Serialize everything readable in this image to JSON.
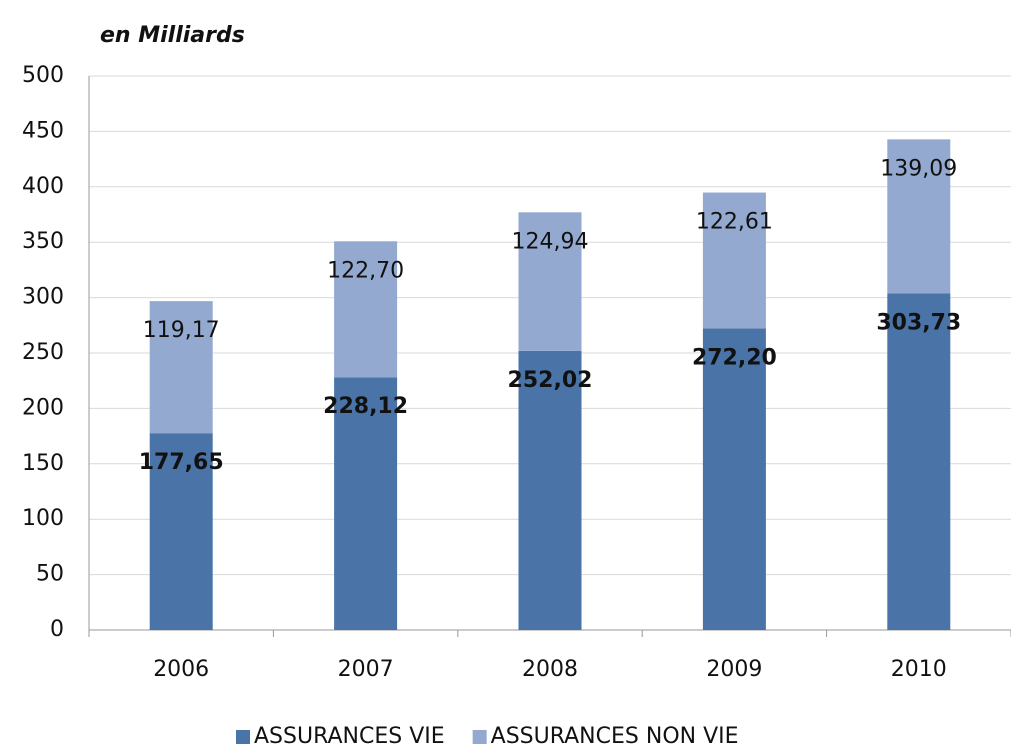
{
  "chart_data": {
    "type": "stacked_bar",
    "title": "en Milliards",
    "categories": [
      "2006",
      "2007",
      "2008",
      "2009",
      "2010"
    ],
    "series": [
      {
        "name": "ASSURANCES VIE",
        "color": "#4a74a8",
        "values": [
          177.65,
          228.12,
          252.02,
          272.2,
          303.73
        ],
        "value_labels": [
          "177,65",
          "228,12",
          "252,02",
          "272,20",
          "303,73"
        ]
      },
      {
        "name": "ASSURANCES NON VIE",
        "color": "#94a9d0",
        "values": [
          119.17,
          122.7,
          124.94,
          122.61,
          139.09
        ],
        "value_labels": [
          "119,17",
          "122,70",
          "124,94",
          "122,61",
          "139,09"
        ]
      }
    ],
    "ylim": [
      0,
      500
    ],
    "yticks": [
      0,
      50,
      100,
      150,
      200,
      250,
      300,
      350,
      400,
      450,
      500
    ],
    "grid": true,
    "legend": "bottom"
  }
}
